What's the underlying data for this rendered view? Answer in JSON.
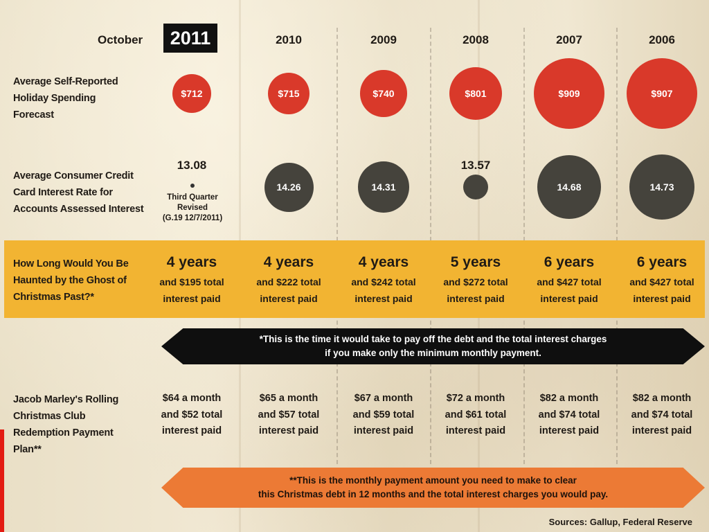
{
  "header": {
    "month": "October",
    "highlight_year": "2011"
  },
  "row_labels": {
    "spending": [
      "Average Self-Reported",
      "Holiday Spending",
      "Forecast"
    ],
    "interest": [
      "Average Consumer Credit",
      "Card Interest Rate for",
      "Accounts Assessed Interest"
    ],
    "haunted": [
      "How Long Would You Be",
      "Haunted by the Ghost of",
      "Christmas Past?*"
    ],
    "marley": [
      "Jacob Marley's Rolling",
      "Christmas Club",
      "Redemption Payment",
      "Plan**"
    ]
  },
  "third_quarter_note": [
    "Third Quarter",
    "Revised",
    "(G.19 12/7/2011)"
  ],
  "colors": {
    "spending": "#d9392a",
    "interest": "#45433c",
    "band": "#f2b432",
    "banner_black": "#0f0f0f",
    "banner_orange": "#ec7a35"
  },
  "banner_black": [
    "*This is the time it would take to pay off the debt and the total interest charges",
    "if you make only the minimum monthly payment."
  ],
  "banner_orange": [
    "**This is the monthly payment amount you need to make to clear",
    "this Christmas debt in 12 months and the total interest charges you would pay."
  ],
  "sources": "Sources: Gallup, Federal Reserve",
  "chart_data": {
    "type": "table",
    "years": [
      "2011",
      "2010",
      "2009",
      "2008",
      "2007",
      "2006"
    ],
    "spending_forecast": [
      712,
      715,
      740,
      801,
      909,
      907
    ],
    "spending_labels": [
      "$712",
      "$715",
      "$740",
      "$801",
      "$909",
      "$907"
    ],
    "interest_rate": [
      13.08,
      14.26,
      14.31,
      13.57,
      14.68,
      14.73
    ],
    "interest_labels": [
      "13.08",
      "14.26",
      "14.31",
      "13.57",
      "14.68",
      "14.73"
    ],
    "haunted_years": [
      "4 years",
      "4 years",
      "4 years",
      "5 years",
      "6 years",
      "6 years"
    ],
    "haunted_interest": [
      [
        "and $195 total",
        "interest paid"
      ],
      [
        "and $222 total",
        "interest paid"
      ],
      [
        "and $242 total",
        "interest paid"
      ],
      [
        "and $272 total",
        "interest paid"
      ],
      [
        "and $427 total",
        "interest paid"
      ],
      [
        "and $427 total",
        "interest paid"
      ]
    ],
    "marley_payment": [
      [
        "$64 a month",
        "and $52 total",
        "interest paid"
      ],
      [
        "$65 a month",
        "and $57 total",
        "interest paid"
      ],
      [
        "$67 a month",
        "and $59 total",
        "interest paid"
      ],
      [
        "$72 a month",
        "and $61 total",
        "interest paid"
      ],
      [
        "$82 a month",
        "and $74 total",
        "interest paid"
      ],
      [
        "$82 a month",
        "and $74 total",
        "interest paid"
      ]
    ]
  }
}
